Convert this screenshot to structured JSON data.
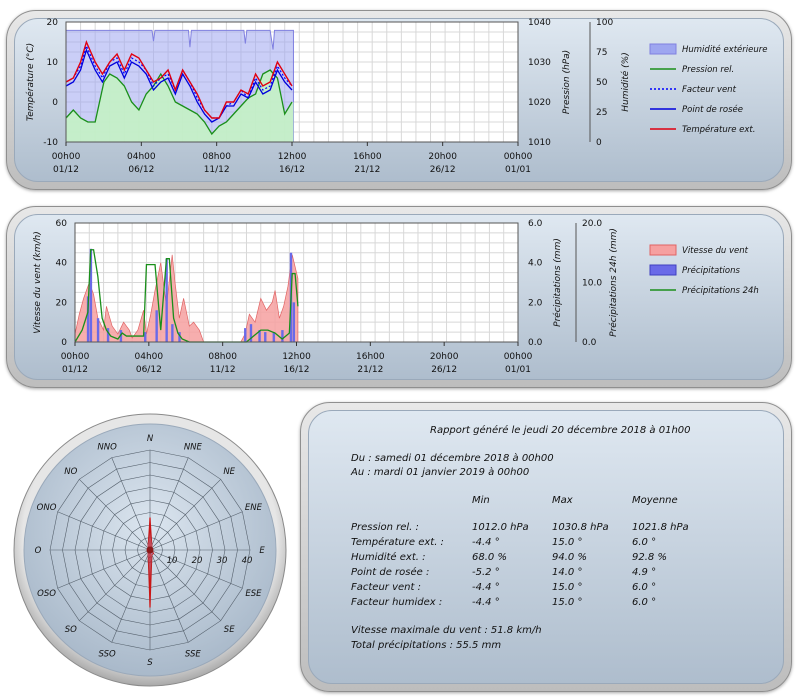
{
  "colors": {
    "humidity": "#9ea6f0",
    "humidity_line": "#8080e0",
    "pressure_fill": "#c4f2c4",
    "pressure": "#1a8f1a",
    "windchill": "#0000ff",
    "dewpoint": "#0000dd",
    "temperature": "#e00010",
    "wind": "#f6a0a0",
    "wind_edge": "#e06464",
    "precip": "#6a6ae8",
    "precip24": "#1a8f1a",
    "rose": "#b080b0"
  },
  "chart_data": [
    {
      "type": "line",
      "ticks": {
        "x": [
          [
            "00h00",
            "01/12"
          ],
          [
            "04h00",
            "06/12"
          ],
          [
            "08h00",
            "11/12"
          ],
          [
            "12h00",
            "16/12"
          ],
          [
            "16h00",
            "21/12"
          ],
          [
            "20h00",
            "26/12"
          ],
          [
            "00h00",
            "01/01"
          ]
        ],
        "left": [
          "20",
          "10",
          "0",
          "-10"
        ],
        "right1": [
          "1040",
          "1030",
          "1020",
          "1010"
        ],
        "right2": [
          "100",
          "75",
          "50",
          "25",
          "0"
        ]
      },
      "ylabel": "Température (°C)",
      "ylabel2": "Pression (hPa)",
      "ylabel3": "Humidité (%)",
      "ylim": [
        -10,
        20
      ],
      "ylim2": [
        1010,
        1040
      ],
      "ylim3": [
        0,
        100
      ],
      "x_days": [
        0,
        31
      ],
      "data_end_day": 15.6,
      "series": [
        {
          "name": "Humidité extérieure",
          "kind": "area",
          "axis": "hum",
          "x": [
            0,
            2,
            4,
            5.9,
            6,
            6.1,
            8,
            8.4,
            8.5,
            8.6,
            10,
            11,
            12.2,
            12.3,
            12.4,
            13,
            14,
            14.2,
            14.3,
            14.4,
            15.6
          ],
          "y": [
            93,
            93,
            93,
            93,
            84,
            93,
            93,
            93,
            79,
            93,
            93,
            93,
            93,
            82,
            93,
            93,
            93,
            77,
            93,
            93,
            93
          ]
        },
        {
          "name": "Pression rel.",
          "kind": "line",
          "axis": "pres",
          "x": [
            0,
            0.5,
            1,
            1.5,
            2,
            2.3,
            2.6,
            3,
            3.5,
            4,
            4.5,
            5,
            5.5,
            6,
            6.5,
            7,
            7.5,
            8,
            8.5,
            9,
            9.5,
            10,
            10.5,
            11,
            11.5,
            12,
            12.5,
            13,
            13.5,
            14,
            14.5,
            15,
            15.5
          ],
          "y": [
            1016,
            1018,
            1016,
            1015,
            1015,
            1020,
            1025,
            1027,
            1026,
            1024,
            1020,
            1018,
            1022,
            1024,
            1027,
            1024,
            1020,
            1019,
            1018,
            1017,
            1015,
            1012,
            1014,
            1015,
            1017,
            1019,
            1021,
            1022,
            1027,
            1028,
            1026,
            1017,
            1020
          ]
        },
        {
          "name": "Facteur vent",
          "kind": "dotted",
          "axis": "temp",
          "x": [
            0,
            0.5,
            1,
            1.4,
            2,
            2.5,
            3,
            3.5,
            4,
            4.5,
            5,
            5.5,
            6,
            6.5,
            7,
            7.5,
            8,
            8.5,
            9,
            9.5,
            10,
            10.5,
            11,
            11.5,
            12,
            12.5,
            13,
            13.5,
            14,
            14.5,
            15,
            15.5
          ],
          "y": [
            5,
            6,
            9,
            14,
            9,
            6,
            10,
            11,
            7,
            11,
            10,
            8,
            4,
            6,
            7,
            3,
            8,
            5,
            1,
            -2,
            -4,
            -4,
            -1,
            0,
            3,
            1,
            6,
            3,
            4,
            9,
            6,
            4
          ]
        },
        {
          "name": "Point de rosée",
          "kind": "line",
          "axis": "temp",
          "x": [
            0,
            0.5,
            1,
            1.4,
            2,
            2.5,
            3,
            3.5,
            4,
            4.5,
            5,
            5.5,
            6,
            6.5,
            7,
            7.5,
            8,
            8.5,
            9,
            9.5,
            10,
            10.5,
            11,
            11.5,
            12,
            12.5,
            13,
            13.5,
            14,
            14.5,
            15,
            15.5
          ],
          "y": [
            4,
            5,
            8,
            13,
            8,
            5,
            9,
            10,
            6,
            10,
            9,
            7,
            3,
            5,
            6,
            2,
            7,
            4,
            0,
            -3,
            -5,
            -4,
            -1,
            -1,
            2,
            1,
            5,
            2,
            3,
            8,
            5,
            3
          ]
        },
        {
          "name": "Température ext.",
          "kind": "line",
          "axis": "temp",
          "x": [
            0,
            0.5,
            1,
            1.4,
            2,
            2.5,
            3,
            3.5,
            4,
            4.5,
            5,
            5.5,
            6,
            6.5,
            7,
            7.5,
            8,
            8.5,
            9,
            9.5,
            10,
            10.5,
            11,
            11.5,
            12,
            12.5,
            13,
            13.5,
            14,
            14.5,
            15,
            15.5
          ],
          "y": [
            5,
            6,
            10,
            15,
            10,
            7,
            10,
            12,
            8,
            12,
            11,
            8,
            5,
            6,
            8,
            3,
            8,
            5,
            2,
            -2,
            -4,
            -4,
            0,
            0,
            3,
            2,
            7,
            4,
            5,
            10,
            7,
            4
          ]
        }
      ]
    },
    {
      "type": "area",
      "ticks": {
        "x": [
          [
            "00h00",
            "01/12"
          ],
          [
            "04h00",
            "06/12"
          ],
          [
            "08h00",
            "11/12"
          ],
          [
            "12h00",
            "16/12"
          ],
          [
            "16h00",
            "21/12"
          ],
          [
            "20h00",
            "26/12"
          ],
          [
            "00h00",
            "01/01"
          ]
        ],
        "left": [
          "60",
          "40",
          "20",
          "0"
        ],
        "right1": [
          "6.0",
          "4.0",
          "2.0",
          "0.0"
        ],
        "right2": [
          "20.0",
          "10.0",
          "0.0"
        ]
      },
      "ylabel": "Vitesse du vent (km/h)",
      "ylabel2": "Précipitations (mm)",
      "ylabel3": "Précipitations 24h (mm)",
      "ylim": [
        0,
        60
      ],
      "ylim2": [
        0,
        6
      ],
      "ylim3": [
        0,
        20
      ],
      "x_days": [
        0,
        31
      ],
      "series": [
        {
          "name": "Vitesse du vent",
          "kind": "area",
          "axis": "wind",
          "x": [
            0,
            0.3,
            0.6,
            1,
            1.3,
            1.6,
            2,
            2.2,
            2.6,
            3,
            3.4,
            3.8,
            4,
            4.4,
            4.8,
            5,
            5.3,
            5.6,
            6,
            6.4,
            6.8,
            7,
            7.3,
            7.6,
            8,
            8.3,
            8.7,
            9,
            9.5,
            10,
            10.5,
            11,
            11.6,
            11.9,
            12.2,
            12.6,
            13,
            13.4,
            13.8,
            14,
            14.3,
            14.6,
            14.9,
            15.2,
            15.6
          ],
          "y": [
            4,
            14,
            22,
            30,
            24,
            12,
            6,
            18,
            8,
            4,
            10,
            6,
            2,
            6,
            16,
            4,
            14,
            26,
            40,
            18,
            44,
            30,
            12,
            22,
            8,
            10,
            6,
            0,
            0,
            0,
            0,
            0,
            0,
            4,
            14,
            10,
            22,
            16,
            20,
            26,
            12,
            18,
            28,
            44,
            32
          ]
        },
        {
          "name": "Précipitations",
          "kind": "bar",
          "axis": "precip",
          "x": [
            0.9,
            1.1,
            1.6,
            2.3,
            3.2,
            4.9,
            5.7,
            6.4,
            6.8,
            7.3,
            11.9,
            12.3,
            12.9,
            13.3,
            13.9,
            14.5,
            15.1,
            15.3
          ],
          "y": [
            2.3,
            4.7,
            1.2,
            0.7,
            0.6,
            0.5,
            1.6,
            4.2,
            0.9,
            0.5,
            0.7,
            0.9,
            0.6,
            0.5,
            0.5,
            0.6,
            4.5,
            2.0
          ]
        },
        {
          "name": "Précipitations 24h",
          "kind": "step",
          "axis": "p24",
          "x": [
            0,
            0.5,
            0.9,
            1.1,
            1.3,
            1.6,
            1.9,
            2.2,
            2.5,
            3.0,
            3.3,
            3.6,
            4.8,
            5.0,
            5.6,
            6.0,
            6.4,
            6.6,
            6.9,
            7.2,
            7.5,
            8.0,
            9.0,
            11.8,
            12.0,
            12.5,
            13.0,
            13.5,
            14.0,
            14.5,
            15.0,
            15.2,
            15.4,
            15.6
          ],
          "y": [
            0,
            2,
            5,
            15.5,
            15.5,
            11,
            4,
            2,
            1,
            0.5,
            1.5,
            1,
            1,
            13,
            13,
            2,
            14,
            14,
            4,
            1.5,
            0.5,
            0,
            0,
            0,
            0,
            1,
            2,
            2,
            1.5,
            0.5,
            1.5,
            11.5,
            11.5,
            6
          ]
        }
      ]
    },
    {
      "type": "radar",
      "ticks": [
        "0",
        "10",
        "20",
        "30",
        "40"
      ],
      "rmax": 40,
      "directions": [
        "N",
        "NNE",
        "NE",
        "ENE",
        "E",
        "ESE",
        "SE",
        "SSE",
        "S",
        "SSO",
        "SO",
        "OSO",
        "O",
        "ONO",
        "NO",
        "NNO"
      ],
      "series": [
        {
          "name": "Vent",
          "values": [
            13,
            2,
            1,
            1,
            1,
            1,
            2,
            2,
            23,
            2,
            1,
            1,
            1,
            1,
            1,
            2
          ]
        }
      ]
    }
  ],
  "report": {
    "title": "Rapport généré le jeudi 20 décembre 2018 à 01h00",
    "from": "Du : samedi 01 décembre 2018 à 00h00",
    "to": "Au : mardi 01 janvier 2019 à 00h00",
    "headers": [
      "Min",
      "Max",
      "Moyenne"
    ],
    "rows": [
      {
        "label": "Pression rel. :",
        "min": "1012.0 hPa",
        "max": "1030.8 hPa",
        "mean": "1021.8 hPa"
      },
      {
        "label": "Température ext. :",
        "min": "-4.4 °",
        "max": "15.0 °",
        "mean": "6.0 °"
      },
      {
        "label": "Humidité ext. :",
        "min": "68.0 %",
        "max": "94.0 %",
        "mean": "92.8 %"
      },
      {
        "label": "Point de rosée :",
        "min": "-5.2 °",
        "max": "14.0 °",
        "mean": "4.9 °"
      },
      {
        "label": "Facteur vent :",
        "min": "-4.4 °",
        "max": "15.0 °",
        "mean": "6.0 °"
      },
      {
        "label": "Facteur humidex :",
        "min": "-4.4 °",
        "max": "15.0 °",
        "mean": "6.0 °"
      }
    ],
    "max_wind": "Vitesse maximale du vent : 51.8 km/h",
    "total_precip": "Total précipitations : 55.5 mm"
  }
}
